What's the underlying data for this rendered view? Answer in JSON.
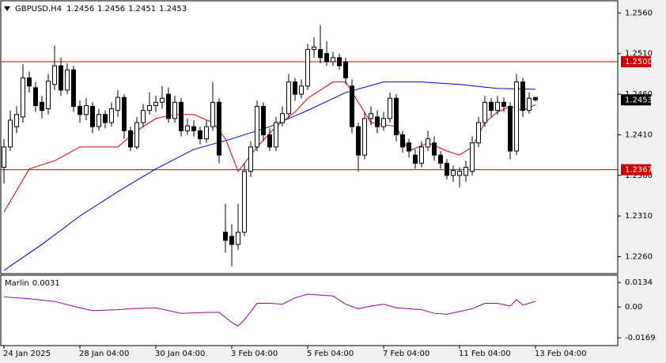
{
  "chart_data": {
    "type": "candlestick",
    "symbol": "GBPUSD,H4",
    "categories": [
      "24 Jan 2025",
      null,
      null,
      null,
      null,
      null,
      null,
      null,
      null,
      null,
      null,
      null,
      "28 Jan 04:00",
      null,
      null,
      null,
      null,
      null,
      null,
      null,
      null,
      null,
      null,
      null,
      "30 Jan 04:00",
      null,
      null,
      null,
      null,
      null,
      null,
      null,
      null,
      null,
      null,
      null,
      "3 Feb 04:00",
      null,
      null,
      null,
      null,
      null,
      null,
      null,
      null,
      null,
      null,
      null,
      "5 Feb 04:00",
      null,
      null,
      null,
      null,
      null,
      null,
      null,
      null,
      null,
      null,
      null,
      "7 Feb 04:00",
      null,
      null,
      null,
      null,
      null,
      null,
      null,
      null,
      null,
      null,
      null,
      "11 Feb 04:00",
      null,
      null,
      null,
      null,
      null,
      null,
      null,
      null,
      null,
      null,
      null,
      "13 Feb 04:00"
    ],
    "open": [
      1.237,
      1.2395,
      1.242,
      1.2432,
      1.248,
      1.2468,
      1.245,
      1.2442,
      1.2472,
      1.2495,
      1.2465,
      1.249,
      1.2445,
      1.2435,
      1.2445,
      1.242,
      1.2435,
      1.2425,
      1.244,
      1.2456,
      1.2415,
      1.2395,
      1.2425,
      1.244,
      1.2446,
      1.245,
      1.246,
      1.243,
      1.245,
      1.2415,
      1.242,
      1.2415,
      1.2405,
      1.242,
      1.245,
      1.229,
      1.2285,
      1.2275,
      1.229,
      1.2365,
      1.2395,
      1.2445,
      1.241,
      1.2395,
      1.2425,
      1.2436,
      1.2475,
      1.246,
      1.247,
      1.2515,
      1.2515,
      1.251,
      1.25,
      1.2505,
      1.25,
      1.247,
      1.242,
      1.2385,
      1.243,
      1.2432,
      1.242,
      1.243,
      1.2455,
      1.241,
      1.24,
      1.2385,
      1.2375,
      1.2395,
      1.24,
      1.2385,
      1.2375,
      1.236,
      1.236,
      1.236,
      1.2365,
      1.24,
      1.2425,
      1.245,
      1.244,
      1.245,
      1.2445,
      1.239,
      1.2475,
      1.244,
      1.2456
    ],
    "high": [
      1.2405,
      1.244,
      1.2445,
      1.2497,
      1.2488,
      1.2475,
      1.2458,
      1.2485,
      1.252,
      1.2505,
      1.2498,
      1.2495,
      1.2452,
      1.2455,
      1.245,
      1.2442,
      1.244,
      1.245,
      1.2465,
      1.246,
      1.242,
      1.2432,
      1.2448,
      1.2462,
      1.2458,
      1.247,
      1.2468,
      1.2458,
      1.2455,
      1.243,
      1.2428,
      1.242,
      1.2428,
      1.2475,
      1.2455,
      1.2325,
      1.23,
      1.2325,
      1.2375,
      1.2402,
      1.2452,
      1.245,
      1.2418,
      1.2432,
      1.2445,
      1.2485,
      1.248,
      1.2478,
      1.2522,
      1.253,
      1.2545,
      1.2525,
      1.2512,
      1.251,
      1.2505,
      1.2478,
      1.2425,
      1.2438,
      1.2445,
      1.244,
      1.2438,
      1.2462,
      1.246,
      1.2415,
      1.2405,
      1.2392,
      1.2402,
      1.2415,
      1.2408,
      1.239,
      1.238,
      1.2372,
      1.237,
      1.2378,
      1.2408,
      1.2432,
      1.2458,
      1.2455,
      1.2458,
      1.2456,
      1.245,
      1.2485,
      1.248,
      1.2462,
      1.2456
    ],
    "low": [
      1.235,
      1.239,
      1.2412,
      1.2425,
      1.2462,
      1.2438,
      1.243,
      1.2435,
      1.2465,
      1.2458,
      1.246,
      1.2438,
      1.2425,
      1.2428,
      1.2412,
      1.2415,
      1.2418,
      1.242,
      1.2432,
      1.2405,
      1.239,
      1.2392,
      1.242,
      1.2435,
      1.2438,
      1.2442,
      1.2425,
      1.2425,
      1.2408,
      1.241,
      1.2408,
      1.2398,
      1.24,
      1.2415,
      1.2375,
      1.2265,
      1.2248,
      1.2268,
      1.2285,
      1.2358,
      1.239,
      1.2402,
      1.239,
      1.239,
      1.242,
      1.243,
      1.2452,
      1.2455,
      1.2465,
      1.2505,
      1.2498,
      1.2495,
      1.2495,
      1.249,
      1.2472,
      1.2412,
      1.2365,
      1.238,
      1.2422,
      1.2412,
      1.2415,
      1.2425,
      1.2402,
      1.2388,
      1.2382,
      1.2368,
      1.237,
      1.239,
      1.2378,
      1.2368,
      1.2355,
      1.2352,
      1.2345,
      1.2352,
      1.236,
      1.2395,
      1.242,
      1.2432,
      1.2435,
      1.2438,
      1.238,
      1.2385,
      1.2432,
      1.2436,
      1.2451
    ],
    "close": [
      1.2395,
      1.2428,
      1.2435,
      1.248,
      1.247,
      1.2446,
      1.244,
      1.2476,
      1.2495,
      1.2465,
      1.249,
      1.2445,
      1.2435,
      1.2446,
      1.242,
      1.2435,
      1.2425,
      1.2442,
      1.2456,
      1.2415,
      1.2395,
      1.2425,
      1.244,
      1.2446,
      1.245,
      1.2455,
      1.243,
      1.245,
      1.2415,
      1.2421,
      1.2415,
      1.2405,
      1.242,
      1.245,
      1.2385,
      1.228,
      1.2275,
      1.229,
      1.2365,
      1.2395,
      1.2445,
      1.241,
      1.2395,
      1.2425,
      1.2436,
      1.2475,
      1.246,
      1.247,
      1.2515,
      1.2518,
      1.2505,
      1.25,
      1.2505,
      1.2495,
      1.248,
      1.242,
      1.2385,
      1.243,
      1.2436,
      1.242,
      1.243,
      1.2455,
      1.241,
      1.2395,
      1.239,
      1.2375,
      1.2395,
      1.2405,
      1.2385,
      1.2375,
      1.236,
      1.2366,
      1.2365,
      1.237,
      1.24,
      1.2425,
      1.245,
      1.244,
      1.245,
      1.2445,
      1.239,
      1.2475,
      1.244,
      1.2455,
      1.2453
    ],
    "lines": [
      {
        "color": "#0000cc",
        "x": [
          0,
          6,
          12,
          18,
          24,
          30,
          36,
          42,
          48,
          54,
          60,
          66,
          72,
          78,
          84
        ],
        "values": [
          1.2243,
          1.2275,
          1.231,
          1.234,
          1.2368,
          1.2392,
          1.2405,
          1.242,
          1.244,
          1.2462,
          1.2475,
          1.2475,
          1.2472,
          1.2467,
          1.2466
        ]
      },
      {
        "color": "#dd0000",
        "x": [
          0,
          4,
          8,
          12,
          18,
          21,
          24,
          27,
          30,
          33,
          35,
          37,
          40,
          43,
          46,
          48,
          52,
          54,
          56,
          58,
          62,
          64,
          67,
          70,
          72,
          74,
          76,
          78,
          80,
          82,
          84
        ],
        "values": [
          1.2315,
          1.2368,
          1.2378,
          1.2395,
          1.2395,
          1.2415,
          1.243,
          1.2435,
          1.2435,
          1.2425,
          1.2405,
          1.2365,
          1.2395,
          1.242,
          1.2438,
          1.2455,
          1.2475,
          1.2475,
          1.245,
          1.2425,
          1.242,
          1.239,
          1.24,
          1.239,
          1.2385,
          1.2395,
          1.2425,
          1.2438,
          1.2445,
          1.244,
          1.2447
        ]
      }
    ],
    "levels": [
      {
        "value": 1.25,
        "label": "1.2500"
      },
      1.2367
    ],
    "level_color": "#cc0000",
    "ylim": [
      1.224,
      1.2575
    ],
    "yticks": [
      {
        "value": 1.256,
        "label": "1.2560"
      },
      {
        "value": 1.251,
        "label": "1.2510"
      },
      {
        "value": 1.246,
        "label": "1.2460"
      },
      {
        "value": 1.241,
        "label": "1.2410"
      },
      {
        "value": 1.236,
        "label": "1.2360"
      },
      {
        "value": 1.231,
        "label": "1.2310"
      },
      {
        "value": 1.226,
        "label": "1.2260"
      }
    ],
    "indicator": {
      "type": "line",
      "name": "Marlin",
      "color": "#990099",
      "x": [
        0,
        4,
        8,
        12,
        14,
        18,
        20,
        24,
        28,
        32,
        34,
        36,
        37,
        38,
        40,
        42,
        44,
        46,
        48,
        50,
        52,
        54,
        56,
        58,
        60,
        62,
        64,
        66,
        68,
        70,
        72,
        74,
        76,
        78,
        80,
        81,
        82,
        84
      ],
      "values": [
        0.0055,
        0.0045,
        0.003,
        -0.0005,
        -0.002,
        -0.0015,
        -0.001,
        -0.0005,
        -0.0035,
        -0.003,
        -0.003,
        -0.0085,
        -0.0105,
        -0.007,
        0.002,
        0.002,
        0.0015,
        0.005,
        0.007,
        0.0065,
        0.006,
        0.0015,
        -0.001,
        0.0005,
        0.0015,
        -0.0005,
        -0.001,
        -0.0015,
        -0.0035,
        -0.004,
        -0.0025,
        -0.001,
        0.002,
        0.002,
        0.0005,
        0.004,
        0.001,
        0.0031
      ],
      "ylim": [
        -0.0212,
        0.0174
      ],
      "yticks": [
        0.0134,
        {
          "value": 0,
          "label": "0.00"
        },
        -0.0169
      ]
    }
  }
}
